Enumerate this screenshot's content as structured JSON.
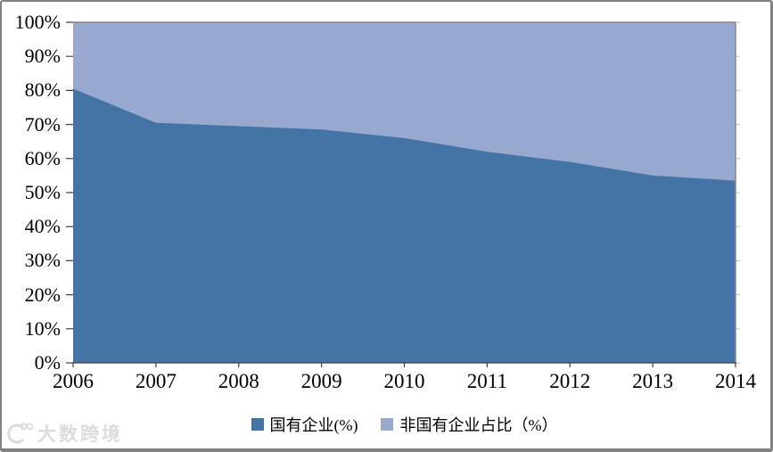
{
  "chart_data": {
    "type": "area",
    "stacked_percent": true,
    "title": "",
    "xlabel": "",
    "ylabel": "",
    "x": [
      "2006",
      "2007",
      "2008",
      "2009",
      "2010",
      "2011",
      "2012",
      "2013",
      "2014"
    ],
    "series": [
      {
        "name": "国有企业(%)",
        "color": "#4474a6",
        "values": [
          80.5,
          70.5,
          69.5,
          68.5,
          66,
          62,
          59,
          55,
          53.5
        ]
      },
      {
        "name": "非国有企业占比（%）",
        "color": "#97a9cf",
        "values": [
          19.5,
          29.5,
          30.5,
          31.5,
          34,
          38,
          41,
          45,
          46.5
        ]
      }
    ],
    "ylim": [
      0,
      100
    ],
    "y_ticks": [
      "0%",
      "10%",
      "20%",
      "30%",
      "40%",
      "50%",
      "60%",
      "70%",
      "80%",
      "90%",
      "100%"
    ],
    "grid": false,
    "legend_position": "bottom-center"
  },
  "legend": {
    "items": [
      {
        "label": "国有企业(%)",
        "color": "#4474a6"
      },
      {
        "label": "非国有企业占比（%）",
        "color": "#97a9cf"
      }
    ]
  },
  "watermark": {
    "text": "大数跨境"
  },
  "colors": {
    "state_area": "#4474a6",
    "non_state_area": "#97a9cf",
    "axis": "#404040",
    "plot_border": "#868686",
    "frame_border": "#828282",
    "label_text": "#000000",
    "watermark": "#dcdcdc"
  }
}
